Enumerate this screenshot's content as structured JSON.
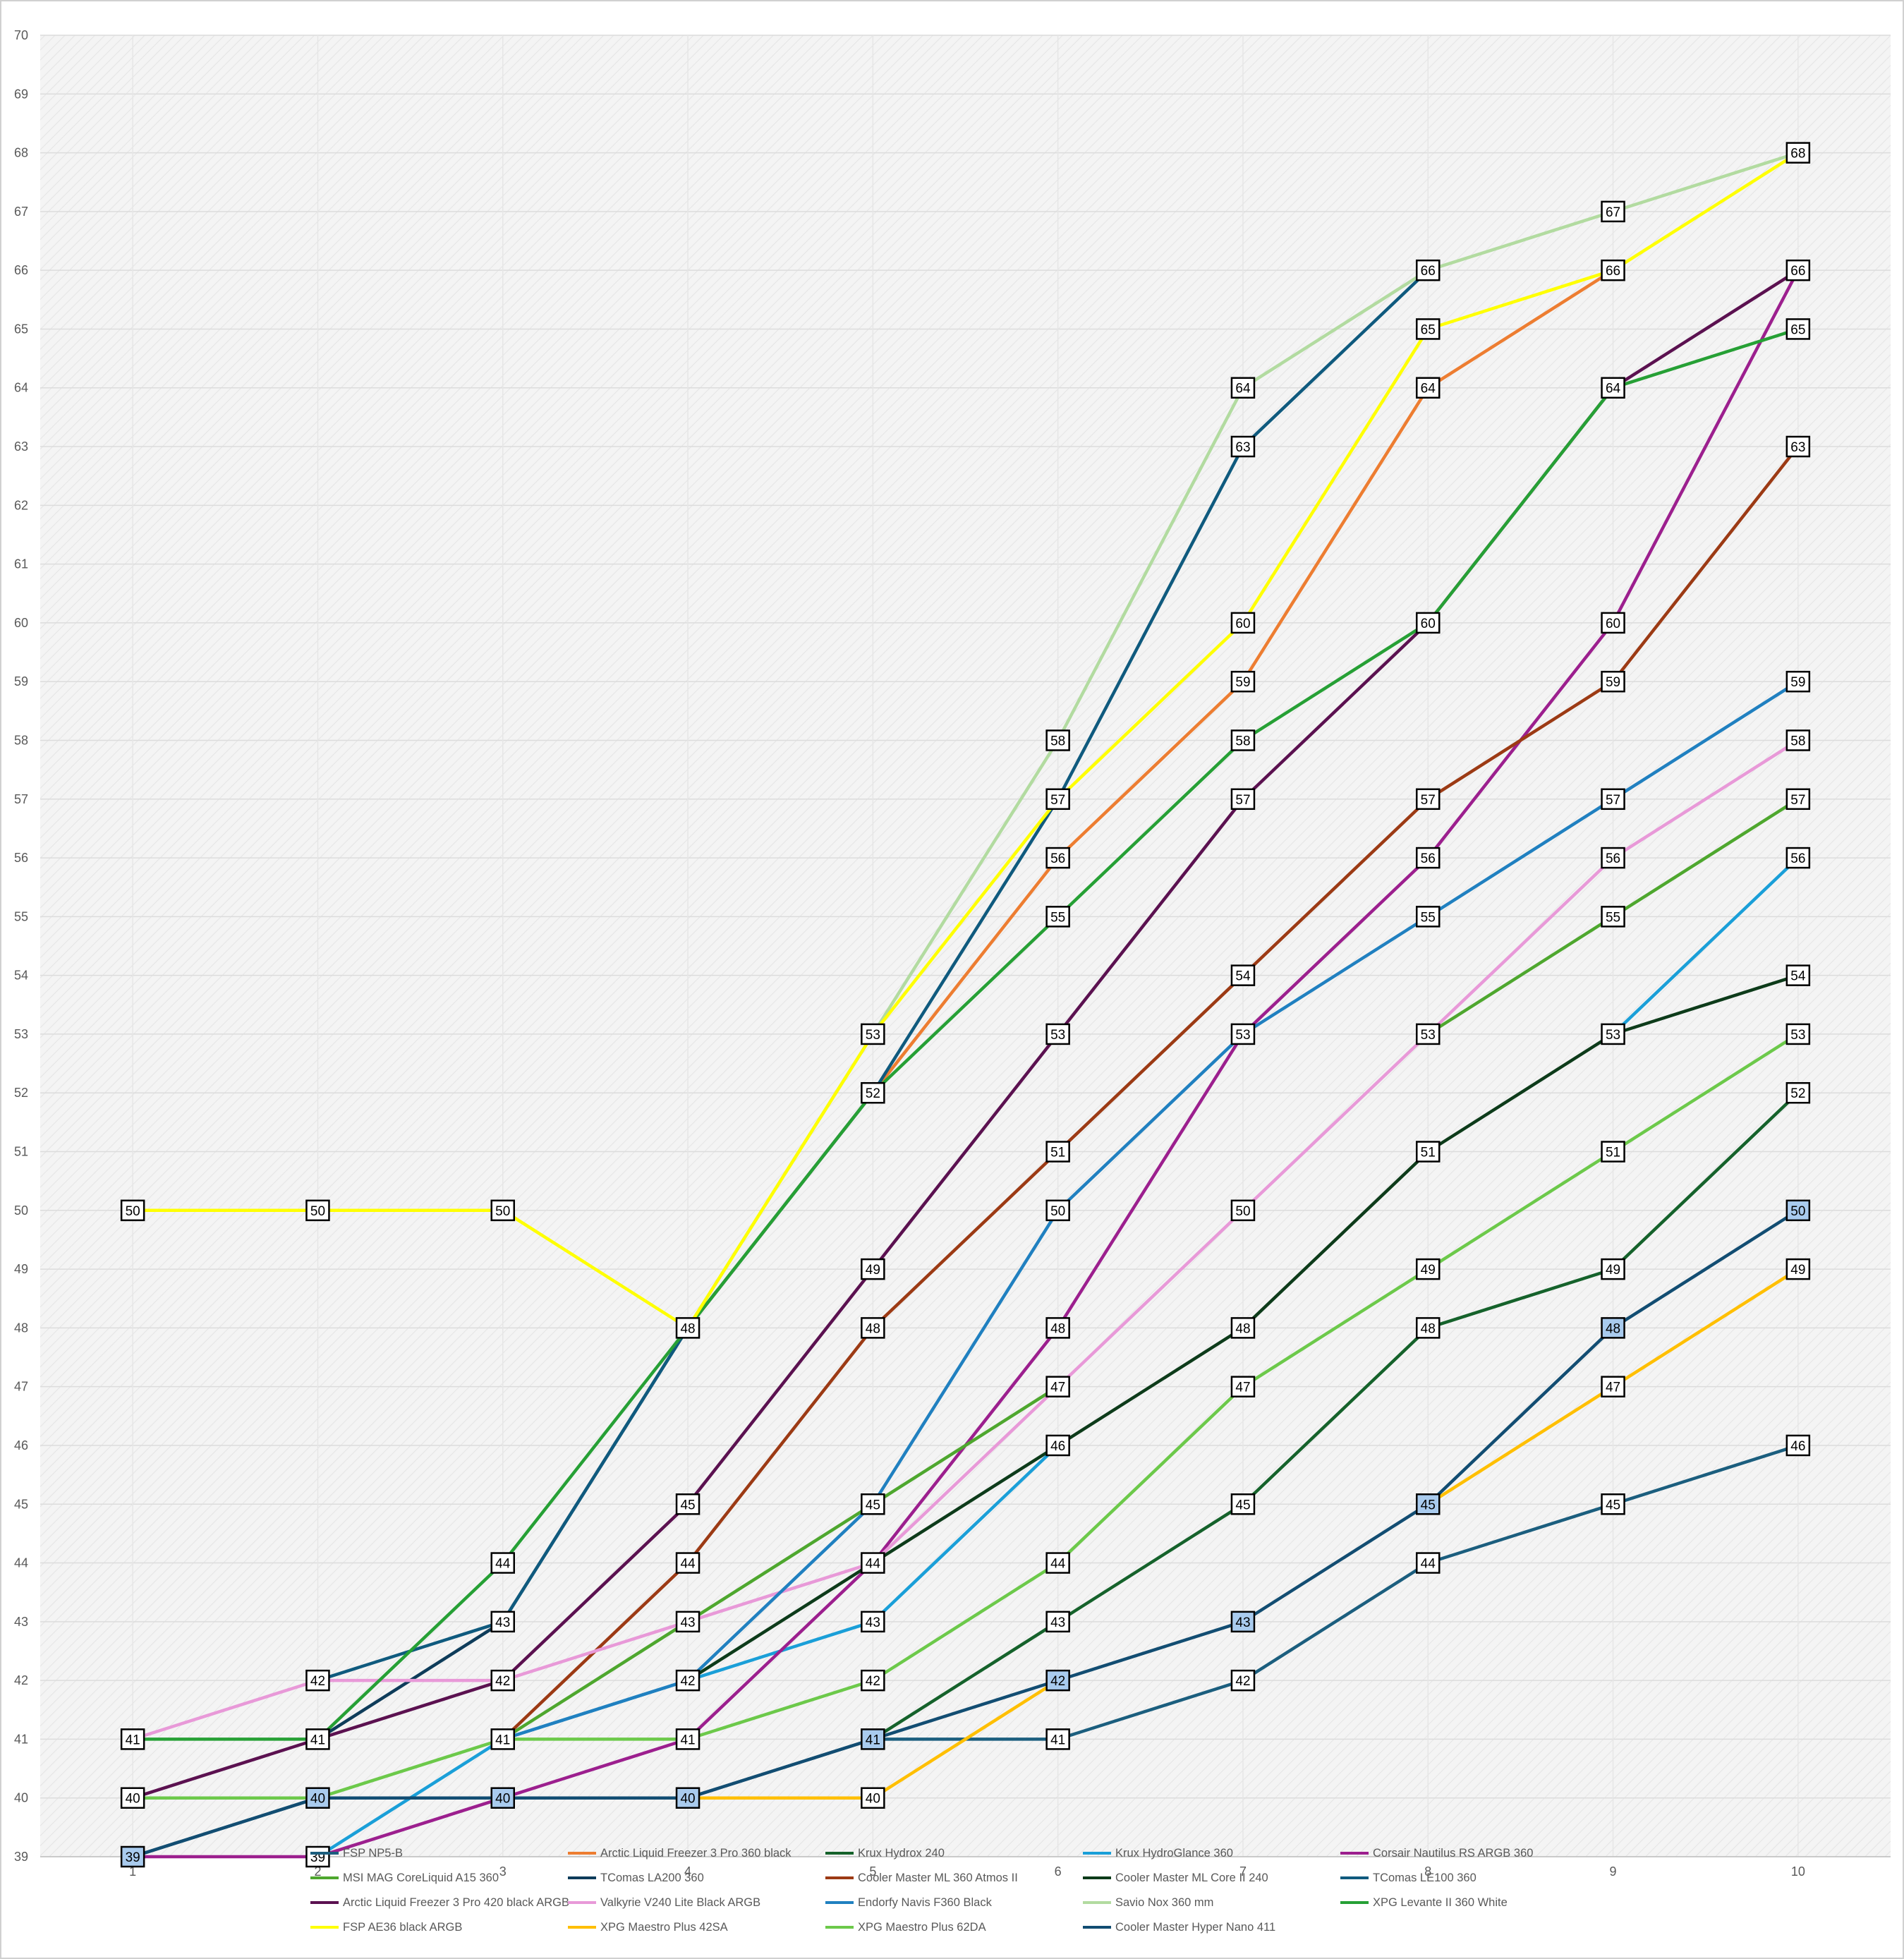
{
  "chart_data": {
    "type": "line",
    "title": "",
    "xlabel": "",
    "ylabel": "",
    "x": [
      1,
      2,
      3,
      4,
      5,
      6,
      7,
      8,
      9,
      10
    ],
    "ylim": [
      39,
      70
    ],
    "xlim": [
      0.5,
      10.5
    ],
    "grid": true,
    "legend_position": "bottom",
    "series": [
      {
        "name": "FSP NP5-B",
        "color": "#1b5e7e",
        "values": [
          39,
          40,
          40,
          40,
          41,
          41,
          42,
          44,
          45,
          46
        ]
      },
      {
        "name": "Arctic Liquid Freezer 3 Pro 360 black",
        "color": "#ed7d31",
        "values": [
          null,
          null,
          null,
          48,
          52,
          56,
          59,
          64,
          66,
          null
        ]
      },
      {
        "name": "Krux Hydrox 240",
        "color": "#15622b",
        "values": [
          null,
          null,
          null,
          null,
          41,
          43,
          45,
          48,
          49,
          52
        ]
      },
      {
        "name": "Krux HydroGlance 360",
        "color": "#1a9fd8",
        "values": [
          null,
          39,
          41,
          42,
          43,
          46,
          null,
          null,
          53,
          56
        ]
      },
      {
        "name": "Corsair  Nautilus RS ARGB 360",
        "color": "#9c1f8e",
        "values": [
          39,
          39,
          40,
          41,
          44,
          48,
          53,
          56,
          60,
          66
        ]
      },
      {
        "name": "MSI MAG CoreLiquid A15 360",
        "color": "#4ea72e",
        "values": [
          null,
          null,
          41,
          43,
          45,
          47,
          null,
          53,
          55,
          57
        ]
      },
      {
        "name": "TComas LA200 360",
        "color": "#0e3c5a",
        "values": [
          null,
          41,
          43,
          48,
          null,
          null,
          null,
          null,
          null,
          null
        ]
      },
      {
        "name": "Cooler Master ML 360 Atmos II",
        "color": "#9c3a14",
        "values": [
          null,
          null,
          41,
          44,
          48,
          51,
          54,
          57,
          59,
          63
        ]
      },
      {
        "name": "Cooler Master ML Core II 240",
        "color": "#0d3b1a",
        "values": [
          null,
          null,
          null,
          42,
          44,
          46,
          48,
          51,
          53,
          54
        ]
      },
      {
        "name": "TComas LE100 360",
        "color": "#0f5a7e",
        "values": [
          null,
          42,
          43,
          48,
          52,
          57,
          63,
          66,
          null,
          null
        ]
      },
      {
        "name": "Arctic Liquid Freezer 3 Pro 420 black ARGB",
        "color": "#5b1150",
        "values": [
          40,
          41,
          42,
          45,
          49,
          53,
          57,
          60,
          64,
          66
        ]
      },
      {
        "name": "Valkyrie V240 Lite Black ARGB",
        "color": "#e899d8",
        "values": [
          41,
          42,
          42,
          43,
          44,
          47,
          50,
          53,
          56,
          58
        ]
      },
      {
        "name": "Endorfy Navis F360 Black",
        "color": "#2080c0",
        "values": [
          null,
          null,
          41,
          42,
          45,
          50,
          53,
          55,
          57,
          59
        ]
      },
      {
        "name": "Savio Nox 360 mm",
        "color": "#b2dba0",
        "values": [
          null,
          null,
          null,
          48,
          53,
          58,
          64,
          66,
          67,
          68
        ]
      },
      {
        "name": "XPG Levante II 360 White",
        "color": "#26a035",
        "values": [
          41,
          41,
          44,
          48,
          52,
          55,
          58,
          60,
          64,
          65
        ]
      },
      {
        "name": "FSP AE36 black ARGB",
        "color": "#ffff00",
        "values": [
          50,
          50,
          50,
          48,
          53,
          57,
          60,
          65,
          66,
          68
        ]
      },
      {
        "name": "XPG Maestro Plus 42SA",
        "color": "#ffbf00",
        "values": [
          null,
          null,
          null,
          40,
          40,
          42,
          null,
          45,
          47,
          49
        ]
      },
      {
        "name": "XPG Maestro Plus 62DA",
        "color": "#6cc94a",
        "values": [
          40,
          40,
          41,
          41,
          42,
          44,
          47,
          49,
          51,
          53
        ]
      },
      {
        "name": "Cooler Master Hyper Nano 411",
        "color": "#124d72",
        "values": [
          39,
          40,
          40,
          40,
          41,
          42,
          43,
          45,
          48,
          50
        ]
      }
    ],
    "data_labels": [
      {
        "x": 1,
        "y": 50
      },
      {
        "x": 2,
        "y": 50
      },
      {
        "x": 3,
        "y": 50
      },
      {
        "x": 1,
        "y": 41
      },
      {
        "x": 2,
        "y": 41
      },
      {
        "x": 1,
        "y": 40
      },
      {
        "x": 1,
        "y": 39,
        "highlight": true
      },
      {
        "x": 2,
        "y": 42
      },
      {
        "x": 2,
        "y": 40,
        "highlight": true
      },
      {
        "x": 2,
        "y": 39
      },
      {
        "x": 3,
        "y": 44
      },
      {
        "x": 3,
        "y": 43
      },
      {
        "x": 3,
        "y": 42
      },
      {
        "x": 3,
        "y": 41
      },
      {
        "x": 3,
        "y": 40,
        "highlight": true
      },
      {
        "x": 4,
        "y": 48
      },
      {
        "x": 4,
        "y": 45
      },
      {
        "x": 4,
        "y": 44
      },
      {
        "x": 4,
        "y": 43
      },
      {
        "x": 4,
        "y": 42
      },
      {
        "x": 4,
        "y": 41
      },
      {
        "x": 4,
        "y": 40,
        "highlight": true
      },
      {
        "x": 5,
        "y": 53
      },
      {
        "x": 5,
        "y": 52
      },
      {
        "x": 5,
        "y": 49
      },
      {
        "x": 5,
        "y": 48
      },
      {
        "x": 5,
        "y": 45
      },
      {
        "x": 5,
        "y": 44
      },
      {
        "x": 5,
        "y": 43
      },
      {
        "x": 5,
        "y": 42
      },
      {
        "x": 5,
        "y": 41,
        "highlight": true
      },
      {
        "x": 5,
        "y": 40
      },
      {
        "x": 6,
        "y": 58
      },
      {
        "x": 6,
        "y": 57
      },
      {
        "x": 6,
        "y": 56
      },
      {
        "x": 6,
        "y": 55
      },
      {
        "x": 6,
        "y": 53
      },
      {
        "x": 6,
        "y": 51
      },
      {
        "x": 6,
        "y": 50
      },
      {
        "x": 6,
        "y": 48
      },
      {
        "x": 6,
        "y": 47
      },
      {
        "x": 6,
        "y": 46
      },
      {
        "x": 6,
        "y": 44
      },
      {
        "x": 6,
        "y": 43
      },
      {
        "x": 6,
        "y": 42,
        "highlight": true
      },
      {
        "x": 6,
        "y": 41
      },
      {
        "x": 7,
        "y": 64
      },
      {
        "x": 7,
        "y": 63
      },
      {
        "x": 7,
        "y": 60
      },
      {
        "x": 7,
        "y": 59
      },
      {
        "x": 7,
        "y": 58
      },
      {
        "x": 7,
        "y": 57
      },
      {
        "x": 7,
        "y": 54
      },
      {
        "x": 7,
        "y": 53
      },
      {
        "x": 7,
        "y": 50
      },
      {
        "x": 7,
        "y": 48
      },
      {
        "x": 7,
        "y": 47
      },
      {
        "x": 7,
        "y": 45
      },
      {
        "x": 7,
        "y": 43,
        "highlight": true
      },
      {
        "x": 7,
        "y": 42
      },
      {
        "x": 8,
        "y": 66
      },
      {
        "x": 8,
        "y": 65
      },
      {
        "x": 8,
        "y": 64
      },
      {
        "x": 8,
        "y": 60
      },
      {
        "x": 8,
        "y": 57
      },
      {
        "x": 8,
        "y": 56
      },
      {
        "x": 8,
        "y": 55
      },
      {
        "x": 8,
        "y": 53
      },
      {
        "x": 8,
        "y": 51
      },
      {
        "x": 8,
        "y": 49
      },
      {
        "x": 8,
        "y": 48
      },
      {
        "x": 8,
        "y": 45,
        "highlight": true
      },
      {
        "x": 8,
        "y": 44
      },
      {
        "x": 9,
        "y": 67
      },
      {
        "x": 9,
        "y": 66
      },
      {
        "x": 9,
        "y": 64
      },
      {
        "x": 9,
        "y": 60
      },
      {
        "x": 9,
        "y": 59
      },
      {
        "x": 9,
        "y": 57
      },
      {
        "x": 9,
        "y": 56
      },
      {
        "x": 9,
        "y": 55
      },
      {
        "x": 9,
        "y": 53
      },
      {
        "x": 9,
        "y": 51
      },
      {
        "x": 9,
        "y": 49
      },
      {
        "x": 9,
        "y": 48,
        "highlight": true
      },
      {
        "x": 9,
        "y": 47
      },
      {
        "x": 9,
        "y": 45
      },
      {
        "x": 10,
        "y": 68
      },
      {
        "x": 10,
        "y": 66
      },
      {
        "x": 10,
        "y": 65
      },
      {
        "x": 10,
        "y": 63
      },
      {
        "x": 10,
        "y": 59
      },
      {
        "x": 10,
        "y": 58
      },
      {
        "x": 10,
        "y": 57
      },
      {
        "x": 10,
        "y": 56
      },
      {
        "x": 10,
        "y": 54
      },
      {
        "x": 10,
        "y": 53
      },
      {
        "x": 10,
        "y": 52
      },
      {
        "x": 10,
        "y": 50,
        "highlight": true
      },
      {
        "x": 10,
        "y": 49
      },
      {
        "x": 10,
        "y": 46
      }
    ],
    "label_box_color": "#ffffff",
    "label_highlight_color": "#a9cbee",
    "plot_background": "#f2f2f2"
  }
}
